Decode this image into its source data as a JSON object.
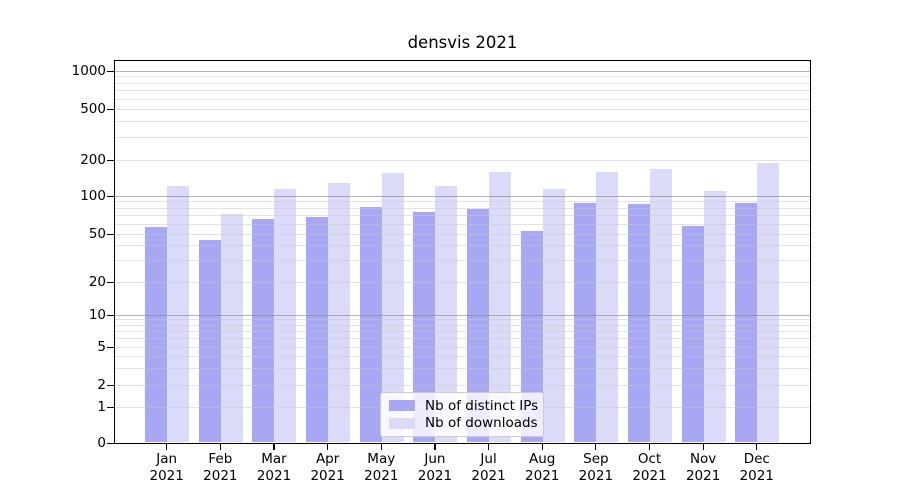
{
  "title": "densvis 2021",
  "chart_data": {
    "type": "bar",
    "title": "densvis 2021",
    "categories": [
      "Jan 2021",
      "Feb 2021",
      "Mar 2021",
      "Apr 2021",
      "May 2021",
      "Jun 2021",
      "Jul 2021",
      "Aug 2021",
      "Sep 2021",
      "Oct 2021",
      "Nov 2021",
      "Dec 2021"
    ],
    "series": [
      {
        "name": "Nb of distinct IPs",
        "color": "#a7a7f3",
        "values": [
          56,
          44,
          65,
          67,
          81,
          74,
          78,
          52,
          87,
          86,
          57,
          87
        ]
      },
      {
        "name": "Nb of downloads",
        "color": "#dbdbf9",
        "values": [
          120,
          71,
          114,
          126,
          155,
          120,
          158,
          114,
          158,
          168,
          109,
          187
        ]
      }
    ],
    "yscale": "symlog",
    "yticks": [
      0,
      1,
      2,
      5,
      10,
      20,
      50,
      100,
      200,
      500,
      1000
    ],
    "ylim": [
      0,
      1200
    ],
    "xlabel": "",
    "ylabel": "",
    "grid": "on",
    "grid_over_bars": true,
    "legend_position": "lower center"
  },
  "legend": {
    "items": [
      {
        "label": "Nb of distinct IPs",
        "color": "#a7a7f3"
      },
      {
        "label": "Nb of downloads",
        "color": "#dbdbf9"
      }
    ]
  },
  "colors": {
    "bar_dark": "#a7a7f3",
    "bar_light": "#dbdbf9",
    "grid_minor": "rgba(200,200,205,0.5)",
    "grid_major": "rgba(128,128,132,0.6)",
    "spine": "#000000",
    "text": "#000000",
    "legend_border": "#cccccc"
  }
}
